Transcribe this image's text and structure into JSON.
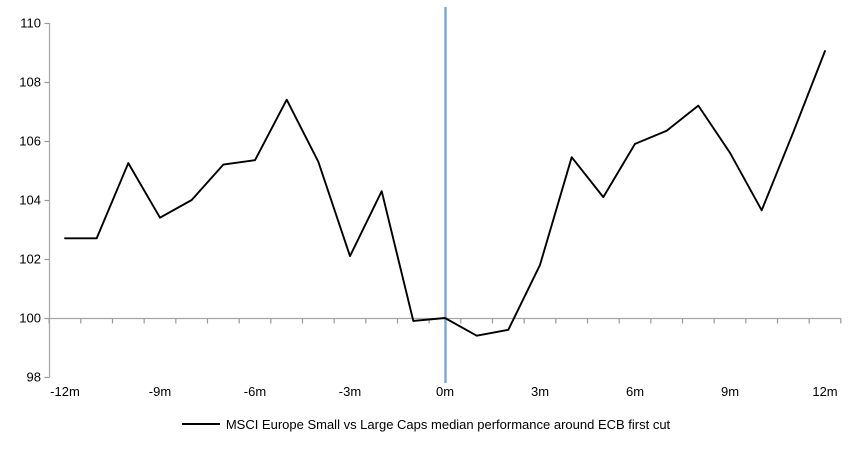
{
  "chart_data": {
    "type": "line",
    "title": "",
    "legend": "MSCI Europe Small vs Large Caps median performance around ECB first cut",
    "xlabel": "",
    "ylabel": "",
    "months": [
      -12,
      -11,
      -10,
      -9,
      -8,
      -7,
      -6,
      -5,
      -4,
      -3,
      -2,
      -1,
      0,
      1,
      2,
      3,
      4,
      5,
      6,
      7,
      8,
      9,
      10,
      11,
      12
    ],
    "values": [
      102.7,
      102.7,
      105.25,
      103.4,
      104.0,
      105.2,
      105.35,
      107.4,
      105.3,
      102.1,
      104.3,
      99.9,
      100.0,
      99.4,
      99.6,
      101.8,
      105.45,
      104.1,
      105.9,
      106.35,
      107.2,
      105.6,
      103.65,
      106.3,
      109.05
    ],
    "x_tick_labels": [
      "-12m",
      "-9m",
      "-6m",
      "-3m",
      "0m",
      "3m",
      "6m",
      "9m",
      "12m"
    ],
    "x_tick_months": [
      -12,
      -9,
      -6,
      -3,
      0,
      3,
      6,
      9,
      12
    ],
    "y_ticks": [
      98,
      100,
      102,
      104,
      106,
      108,
      110
    ],
    "ylim": [
      98,
      110
    ],
    "baseline_value": 100,
    "event_line_month": 0,
    "legend_position": "bottom-center",
    "grid": "none",
    "colors": {
      "series": "#000000",
      "event_line": "#7AA5D4",
      "axis": "#A6A6A6",
      "tick": "#999999",
      "text": "#000000",
      "background": "#FFFFFF"
    }
  }
}
